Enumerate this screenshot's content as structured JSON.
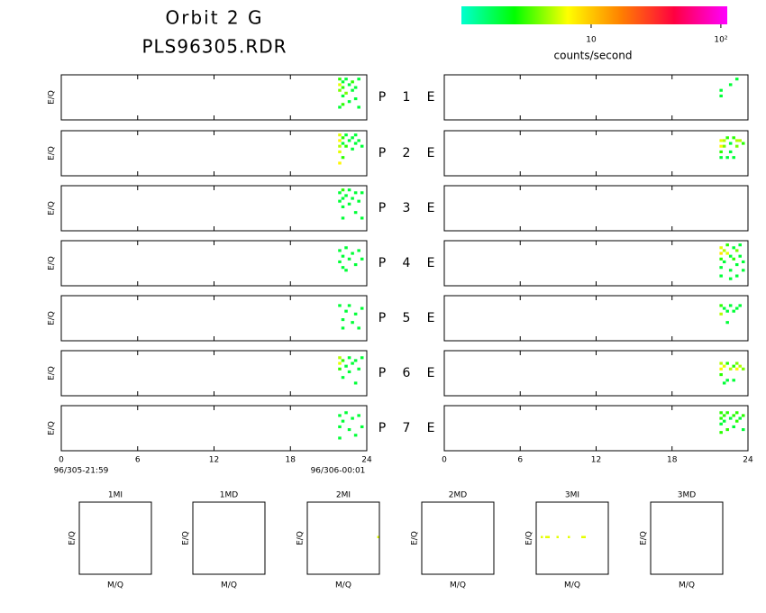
{
  "title": "Orbit 2 G",
  "subtitle": "PLS96305.RDR",
  "colorbar": {
    "label": "counts/second",
    "lim": [
      1,
      112
    ],
    "log": true,
    "ticks": [
      {
        "value": 10,
        "label": "10"
      },
      {
        "value": 100,
        "label": "10²"
      }
    ],
    "colors": [
      "#00ffd0",
      "#00ff00",
      "#ffff00",
      "#ff8000",
      "#ff0040",
      "#ff00ff"
    ]
  },
  "time_panels": {
    "ylabel": "E/Q",
    "xlim": [
      0,
      24
    ],
    "ylim": [
      0,
      16
    ],
    "xticks": [
      0,
      6,
      12,
      18,
      24
    ],
    "start": "96/305-21:59",
    "end": "96/306-00:01",
    "rows": [
      {
        "left": "P",
        "number": 1,
        "right": "E",
        "p_cells": [
          [
            21.75,
            14,
            3
          ],
          [
            21.75,
            12,
            6
          ],
          [
            21.75,
            10,
            4
          ],
          [
            22,
            13,
            2
          ],
          [
            22,
            11,
            3
          ],
          [
            22,
            8,
            2
          ],
          [
            22,
            5,
            3
          ],
          [
            22.25,
            14,
            2
          ],
          [
            22.25,
            9,
            4
          ],
          [
            22.5,
            12,
            2
          ],
          [
            22.5,
            6,
            2
          ],
          [
            22.75,
            13,
            3
          ],
          [
            22.75,
            10,
            2
          ],
          [
            23,
            11,
            2
          ],
          [
            23,
            7,
            2
          ],
          [
            23.25,
            14,
            2
          ],
          [
            23.25,
            4,
            2
          ],
          [
            21.75,
            4,
            2
          ]
        ],
        "e_cells": [
          [
            21.75,
            10,
            2
          ],
          [
            21.75,
            8,
            2
          ],
          [
            22.5,
            12,
            2
          ],
          [
            23,
            14,
            2
          ]
        ]
      },
      {
        "left": "P",
        "number": 2,
        "right": "E",
        "p_cells": [
          [
            21.75,
            14,
            6
          ],
          [
            21.75,
            12,
            7
          ],
          [
            21.75,
            10,
            5
          ],
          [
            21.75,
            8,
            6
          ],
          [
            21.75,
            4,
            7
          ],
          [
            22,
            13,
            3
          ],
          [
            22,
            11,
            2
          ],
          [
            22,
            6,
            3
          ],
          [
            22.25,
            14,
            2
          ],
          [
            22.25,
            10,
            3
          ],
          [
            22.5,
            12,
            2
          ],
          [
            22.75,
            13,
            2
          ],
          [
            22.75,
            9,
            2
          ],
          [
            23,
            14,
            2
          ],
          [
            23,
            11,
            2
          ],
          [
            23.25,
            12,
            2
          ],
          [
            23.5,
            10,
            2
          ]
        ],
        "e_cells": [
          [
            21.75,
            12,
            6
          ],
          [
            21.75,
            10,
            7
          ],
          [
            21.75,
            8,
            3
          ],
          [
            21.75,
            6,
            2
          ],
          [
            22,
            12,
            5
          ],
          [
            22,
            10,
            4
          ],
          [
            22.25,
            13,
            3
          ],
          [
            22.5,
            11,
            2
          ],
          [
            22.5,
            8,
            2
          ],
          [
            22.75,
            13,
            3
          ],
          [
            23,
            12,
            5
          ],
          [
            23,
            10,
            4
          ],
          [
            23.25,
            12,
            5
          ],
          [
            23.5,
            11,
            3
          ],
          [
            22.25,
            6,
            2
          ],
          [
            22.75,
            6,
            2
          ]
        ]
      },
      {
        "left": "P",
        "number": 3,
        "right": "E",
        "p_cells": [
          [
            21.75,
            13,
            2
          ],
          [
            21.75,
            10,
            2
          ],
          [
            22,
            14,
            3
          ],
          [
            22,
            11,
            2
          ],
          [
            22,
            8,
            2
          ],
          [
            22,
            4,
            2
          ],
          [
            22.25,
            12,
            2
          ],
          [
            22.5,
            14,
            2
          ],
          [
            22.5,
            9,
            2
          ],
          [
            22.75,
            11,
            2
          ],
          [
            23,
            13,
            2
          ],
          [
            23,
            6,
            2
          ],
          [
            23.25,
            10,
            2
          ],
          [
            23.5,
            13,
            2
          ],
          [
            23.5,
            4,
            2
          ]
        ],
        "e_cells": []
      },
      {
        "left": "P",
        "number": 4,
        "right": "E",
        "p_cells": [
          [
            21.75,
            12,
            2
          ],
          [
            21.75,
            8,
            2
          ],
          [
            22,
            10,
            2
          ],
          [
            22,
            6,
            2
          ],
          [
            22.25,
            13,
            2
          ],
          [
            22.5,
            9,
            2
          ],
          [
            22.75,
            11,
            2
          ],
          [
            23,
            7,
            2
          ],
          [
            23.25,
            12,
            2
          ],
          [
            23.5,
            9,
            2
          ],
          [
            22.25,
            5,
            2
          ]
        ],
        "e_cells": [
          [
            21.75,
            13,
            6
          ],
          [
            21.75,
            11,
            8
          ],
          [
            21.75,
            9,
            3
          ],
          [
            21.75,
            6,
            2
          ],
          [
            21.75,
            3,
            2
          ],
          [
            22,
            12,
            5
          ],
          [
            22,
            8,
            2
          ],
          [
            22.25,
            14,
            3
          ],
          [
            22.25,
            11,
            6
          ],
          [
            22.5,
            10,
            2
          ],
          [
            22.5,
            5,
            2
          ],
          [
            22.75,
            13,
            2
          ],
          [
            22.75,
            9,
            3
          ],
          [
            23,
            12,
            4
          ],
          [
            23,
            7,
            2
          ],
          [
            23,
            3,
            2
          ],
          [
            23.25,
            14,
            2
          ],
          [
            23.25,
            10,
            2
          ],
          [
            23.5,
            8,
            2
          ],
          [
            23.5,
            5,
            2
          ],
          [
            22.5,
            2,
            2
          ]
        ]
      },
      {
        "left": "P",
        "number": 5,
        "right": "E",
        "p_cells": [
          [
            21.75,
            12,
            2
          ],
          [
            22,
            7,
            2
          ],
          [
            22,
            4,
            2
          ],
          [
            22.25,
            10,
            2
          ],
          [
            22.5,
            12,
            2
          ],
          [
            22.75,
            6,
            2
          ],
          [
            23,
            9,
            2
          ],
          [
            23.25,
            4,
            2
          ],
          [
            23.5,
            11,
            2
          ]
        ],
        "e_cells": [
          [
            21.75,
            12,
            3
          ],
          [
            21.75,
            9,
            5
          ],
          [
            22,
            11,
            2
          ],
          [
            22.25,
            10,
            2
          ],
          [
            22.5,
            12,
            2
          ],
          [
            22.75,
            10,
            2
          ],
          [
            23,
            11,
            2
          ],
          [
            23.25,
            12,
            2
          ],
          [
            22.25,
            6,
            2
          ]
        ]
      },
      {
        "left": "P",
        "number": 6,
        "right": "E",
        "p_cells": [
          [
            21.75,
            13,
            5
          ],
          [
            21.75,
            11,
            6
          ],
          [
            21.75,
            9,
            3
          ],
          [
            22,
            12,
            3
          ],
          [
            22,
            6,
            2
          ],
          [
            22.25,
            10,
            2
          ],
          [
            22.5,
            13,
            2
          ],
          [
            22.5,
            8,
            2
          ],
          [
            22.75,
            11,
            2
          ],
          [
            23,
            12,
            2
          ],
          [
            23,
            4,
            2
          ],
          [
            23.25,
            9,
            2
          ],
          [
            23.5,
            13,
            2
          ]
        ],
        "e_cells": [
          [
            21.75,
            11,
            5
          ],
          [
            21.75,
            9,
            7
          ],
          [
            21.75,
            7,
            3
          ],
          [
            22,
            10,
            6
          ],
          [
            22,
            4,
            2
          ],
          [
            22.25,
            11,
            3
          ],
          [
            22.5,
            9,
            5
          ],
          [
            22.75,
            10,
            3
          ],
          [
            23,
            9,
            7
          ],
          [
            23,
            11,
            4
          ],
          [
            23.25,
            10,
            5
          ],
          [
            23.5,
            9,
            4
          ],
          [
            22.25,
            5,
            2
          ],
          [
            22.75,
            5,
            2
          ]
        ]
      },
      {
        "left": "P",
        "number": 7,
        "right": "E",
        "p_cells": [
          [
            21.75,
            12,
            2
          ],
          [
            21.75,
            8,
            2
          ],
          [
            21.75,
            4,
            2
          ],
          [
            22,
            10,
            2
          ],
          [
            22.25,
            13,
            2
          ],
          [
            22.5,
            7,
            2
          ],
          [
            22.75,
            11,
            2
          ],
          [
            23,
            5,
            2
          ],
          [
            23.25,
            12,
            2
          ],
          [
            23.5,
            8,
            2
          ]
        ],
        "e_cells": [
          [
            21.75,
            13,
            3
          ],
          [
            21.75,
            11,
            3
          ],
          [
            21.75,
            9,
            2
          ],
          [
            21.75,
            6,
            3
          ],
          [
            22,
            12,
            3
          ],
          [
            22,
            10,
            2
          ],
          [
            22.25,
            13,
            3
          ],
          [
            22.25,
            7,
            3
          ],
          [
            22.5,
            11,
            2
          ],
          [
            22.75,
            12,
            3
          ],
          [
            22.75,
            8,
            2
          ],
          [
            23,
            13,
            3
          ],
          [
            23,
            10,
            3
          ],
          [
            23.25,
            11,
            2
          ],
          [
            23.5,
            12,
            3
          ],
          [
            23.5,
            7,
            2
          ]
        ]
      }
    ]
  },
  "mass_panels": {
    "xlabel": "M/Q",
    "ylabel": "E/Q",
    "xlim": [
      0,
      32
    ],
    "ylim": [
      0,
      32
    ],
    "panels": [
      {
        "name": "1MI",
        "cells": []
      },
      {
        "name": "1MD",
        "cells": []
      },
      {
        "name": "2MI",
        "cells": [
          [
            31,
            16,
            6
          ]
        ]
      },
      {
        "name": "2MD",
        "cells": []
      },
      {
        "name": "3MI",
        "cells": [
          [
            2,
            16,
            6
          ],
          [
            4,
            16,
            6
          ],
          [
            5,
            16,
            6
          ],
          [
            9,
            16,
            6
          ],
          [
            14,
            16,
            6
          ],
          [
            20,
            16,
            6
          ],
          [
            21,
            16,
            6
          ]
        ]
      },
      {
        "name": "3MD",
        "cells": []
      }
    ]
  }
}
